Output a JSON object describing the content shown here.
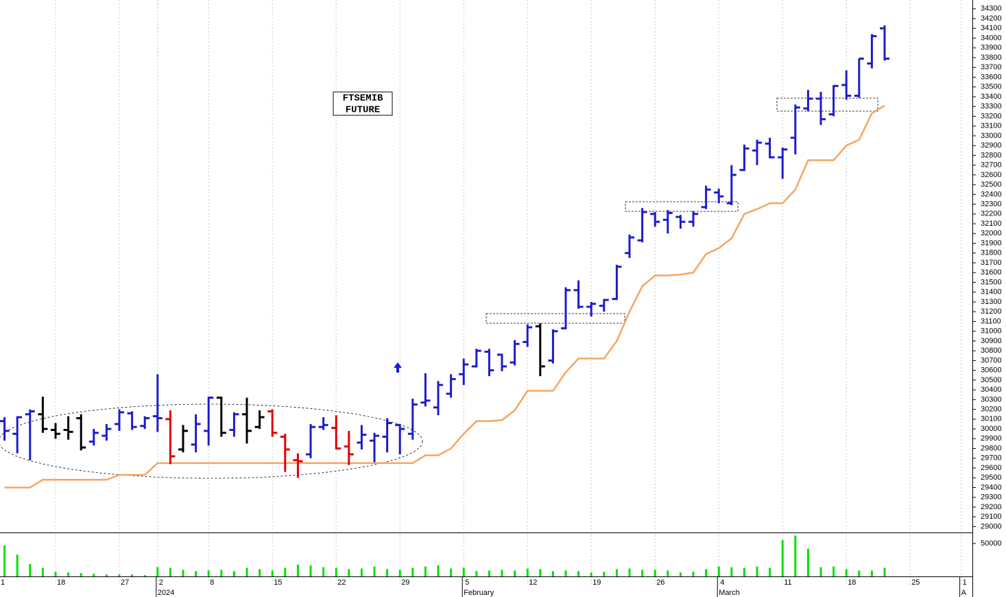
{
  "chart_data": [
    {
      "type": "ohlc",
      "annotation": [
        "FTSEMIB",
        "FUTURE"
      ],
      "categories": [
        "1",
        null,
        null,
        null,
        null,
        "18",
        null,
        null,
        null,
        null,
        "27",
        null,
        null,
        "2",
        null,
        null,
        null,
        "8",
        null,
        null,
        null,
        null,
        "15",
        null,
        null,
        null,
        null,
        "22",
        null,
        null,
        null,
        null,
        "29",
        null,
        null,
        null,
        null,
        "5",
        null,
        null,
        null,
        null,
        "12",
        null,
        null,
        null,
        null,
        "19",
        null,
        null,
        null,
        null,
        "26",
        null,
        null,
        null,
        null,
        "4",
        null,
        null,
        null,
        null,
        "11",
        null,
        null,
        null,
        null,
        "18",
        null,
        null,
        null,
        null,
        "25",
        null,
        null,
        null,
        "1"
      ],
      "categories2": [
        null,
        null,
        null,
        null,
        null,
        null,
        null,
        null,
        null,
        null,
        null,
        null,
        null,
        "2024",
        null,
        null,
        null,
        null,
        null,
        null,
        null,
        null,
        null,
        null,
        null,
        null,
        null,
        null,
        null,
        null,
        null,
        null,
        null,
        null,
        null,
        null,
        null,
        "February",
        null,
        null,
        null,
        null,
        null,
        null,
        null,
        null,
        null,
        null,
        null,
        null,
        null,
        null,
        null,
        null,
        null,
        null,
        null,
        "March",
        null,
        null,
        null,
        null,
        null,
        null,
        null,
        null,
        null,
        null,
        null,
        null,
        null,
        null,
        null,
        null,
        null,
        null,
        "A"
      ],
      "open": [
        null,
        30080,
        29950,
        30150,
        30150,
        29990,
        29990,
        30110,
        29870,
        29930,
        30050,
        30160,
        30030,
        30130,
        30100,
        29790,
        29840,
        29980,
        30320,
        29990,
        30150,
        30020,
        30180,
        29920,
        29680,
        29740,
        30020,
        30010,
        29820,
        29860,
        29880,
        29920,
        30040,
        29950,
        30270,
        30220,
        30360,
        30560,
        30640,
        30790,
        30760,
        30680,
        30890,
        31050,
        30700,
        31030,
        31420,
        31250,
        31260,
        31330,
        31800,
        31930,
        32200,
        32140,
        32170,
        32120,
        32270,
        32420,
        32310,
        32650,
        32850,
        32920,
        32780,
        32980,
        33280,
        33380,
        33220,
        33520,
        33410,
        33740,
        34100,
        null,
        null,
        null,
        null,
        null,
        null
      ],
      "high": [
        null,
        30120,
        30130,
        30200,
        30330,
        30060,
        30130,
        30150,
        30000,
        30050,
        30200,
        30180,
        30130,
        30560,
        30190,
        30040,
        30150,
        30330,
        30330,
        30170,
        30320,
        30190,
        30200,
        29950,
        29750,
        30050,
        30120,
        30140,
        29980,
        30040,
        29960,
        30110,
        30050,
        30310,
        30570,
        30490,
        30560,
        30720,
        30820,
        30820,
        30770,
        30910,
        31070,
        31080,
        31020,
        31450,
        31520,
        31300,
        31330,
        31680,
        31990,
        32260,
        32220,
        32240,
        32190,
        32230,
        32490,
        32460,
        32700,
        32910,
        32960,
        32980,
        32880,
        33320,
        33470,
        33450,
        33520,
        33670,
        33790,
        34040,
        34130,
        null,
        null,
        null,
        null,
        null,
        null
      ],
      "low": [
        null,
        29880,
        29750,
        29680,
        29960,
        29900,
        29890,
        29780,
        29830,
        29880,
        29980,
        29990,
        30000,
        29970,
        29640,
        29760,
        29760,
        29830,
        29920,
        29920,
        29850,
        30000,
        29920,
        29560,
        29500,
        29700,
        29990,
        29790,
        29630,
        29790,
        29660,
        29760,
        29740,
        29890,
        30230,
        30140,
        30320,
        30450,
        30630,
        30540,
        30590,
        30650,
        30840,
        30540,
        30670,
        31020,
        31230,
        31150,
        31200,
        31320,
        31750,
        31910,
        32070,
        32000,
        32050,
        32070,
        32250,
        32310,
        32290,
        32640,
        32700,
        32770,
        32560,
        32810,
        33250,
        33110,
        33200,
        33370,
        33390,
        33690,
        33770,
        null,
        null,
        null,
        null,
        null,
        null
      ],
      "close": [
        null,
        29980,
        30120,
        30180,
        30000,
        29950,
        29970,
        29810,
        29960,
        30000,
        30170,
        30020,
        30110,
        30110,
        29720,
        29980,
        30050,
        30320,
        29960,
        30150,
        29980,
        30120,
        29960,
        29790,
        29670,
        30020,
        30040,
        29800,
        29740,
        29940,
        29930,
        30060,
        30000,
        30250,
        30290,
        30450,
        30510,
        30660,
        30800,
        30600,
        30640,
        30870,
        31040,
        30640,
        31000,
        31420,
        31250,
        31280,
        31320,
        31660,
        31960,
        32220,
        32120,
        32210,
        32120,
        32200,
        32450,
        32380,
        32600,
        32870,
        32930,
        32780,
        32860,
        33290,
        33380,
        33170,
        33510,
        33410,
        33790,
        34020,
        33790,
        null,
        null,
        null,
        null,
        null,
        null
      ],
      "colors": [
        null,
        "#1c1ccc",
        "#1c1ccc",
        "#1c1ccc",
        "#000000",
        "#000000",
        "#000000",
        "#000000",
        "#1c1ccc",
        "#1c1ccc",
        "#1c1ccc",
        "#1c1ccc",
        "#1c1ccc",
        "#1c1ccc",
        "#e00000",
        "#000000",
        "#1c1ccc",
        "#1c1ccc",
        "#000000",
        "#1c1ccc",
        "#000000",
        "#000000",
        "#e00000",
        "#e00000",
        "#e00000",
        "#1c1ccc",
        "#1c1ccc",
        "#e00000",
        "#e00000",
        "#1c1ccc",
        "#1c1ccc",
        "#1c1ccc",
        "#1c1ccc",
        "#1c1ccc",
        "#1c1ccc",
        "#1c1ccc",
        "#1c1ccc",
        "#1c1ccc",
        "#1c1ccc",
        "#1c1ccc",
        "#1c1ccc",
        "#1c1ccc",
        "#1c1ccc",
        "#000000",
        "#1c1ccc",
        "#1c1ccc",
        "#1c1ccc",
        "#1c1ccc",
        "#1c1ccc",
        "#1c1ccc",
        "#1c1ccc",
        "#1c1ccc",
        "#1c1ccc",
        "#1c1ccc",
        "#1c1ccc",
        "#1c1ccc",
        "#1c1ccc",
        "#1c1ccc",
        "#1c1ccc",
        "#1c1ccc",
        "#1c1ccc",
        "#1c1ccc",
        "#1c1ccc",
        "#1c1ccc",
        "#1c1ccc",
        "#1c1ccc",
        "#1c1ccc",
        "#1c1ccc",
        "#1c1ccc",
        "#1c1ccc",
        "#1c1ccc",
        null,
        null,
        null,
        null,
        null,
        null
      ],
      "line": {
        "color": "#f5a560",
        "values": [
          null,
          29400,
          29400,
          29400,
          29480,
          29480,
          29480,
          29480,
          29480,
          29480,
          29530,
          29530,
          29530,
          29650,
          29650,
          29650,
          29650,
          29650,
          29650,
          29650,
          29650,
          29650,
          29650,
          29650,
          29650,
          29650,
          29650,
          29650,
          29650,
          29650,
          29650,
          29650,
          29650,
          29650,
          29730,
          29730,
          29800,
          29950,
          30080,
          30080,
          30090,
          30190,
          30390,
          30390,
          30390,
          30580,
          30720,
          30720,
          30720,
          30900,
          31200,
          31460,
          31570,
          31570,
          31580,
          31600,
          31790,
          31850,
          31950,
          32200,
          32250,
          32310,
          32310,
          32450,
          32750,
          32750,
          32750,
          32900,
          32960,
          33230,
          33310,
          null,
          null,
          null,
          null,
          null,
          null
        ]
      },
      "ylim": [
        28940,
        34390
      ],
      "yticks": [
        29000,
        29100,
        29200,
        29300,
        29400,
        29500,
        29600,
        29700,
        29800,
        29900,
        30000,
        30100,
        30200,
        30300,
        30400,
        30500,
        30600,
        30700,
        30800,
        30900,
        31000,
        31100,
        31200,
        31300,
        31400,
        31500,
        31600,
        31700,
        31800,
        31900,
        32000,
        32100,
        32200,
        32300,
        32400,
        32500,
        32600,
        32700,
        32800,
        32900,
        33000,
        33100,
        33200,
        33300,
        33400,
        33500,
        33600,
        33700,
        33800,
        33900,
        34000,
        34100,
        34200,
        34300
      ]
    },
    {
      "type": "bar",
      "color": "#00e000",
      "values": [
        null,
        47000,
        33000,
        19000,
        13000,
        7000,
        6000,
        5000,
        4000,
        3000,
        3000,
        3000,
        2000,
        14000,
        13000,
        10000,
        8000,
        9000,
        10000,
        8000,
        13000,
        11000,
        9000,
        13000,
        18000,
        17000,
        14000,
        13000,
        11000,
        12000,
        15000,
        11000,
        10000,
        13000,
        15000,
        17000,
        12000,
        13000,
        8000,
        9000,
        10000,
        9000,
        12000,
        11000,
        8000,
        9000,
        8000,
        6000,
        7000,
        11000,
        12000,
        10000,
        10000,
        9000,
        6000,
        7000,
        11000,
        15000,
        14000,
        13000,
        15000,
        13000,
        55000,
        62000,
        42000,
        14000,
        15000,
        11000,
        9000,
        9000,
        13000,
        null,
        null,
        null,
        null,
        null,
        null
      ],
      "ylim": [
        0,
        65600
      ],
      "yticks": [
        50000
      ]
    }
  ]
}
